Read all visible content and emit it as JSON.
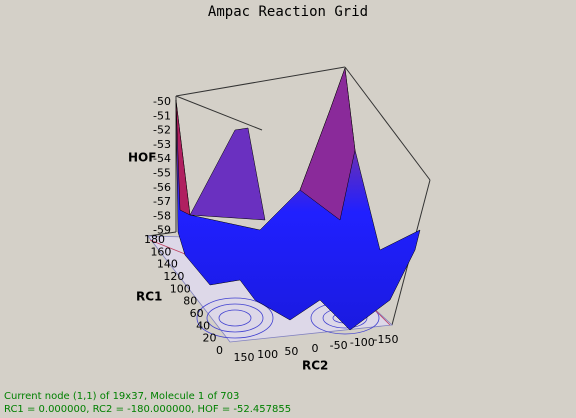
{
  "title": "Ampac Reaction Grid",
  "axes": {
    "z": {
      "label": "HOF",
      "ticks": [
        "-50",
        "-51",
        "-52",
        "-53",
        "-54",
        "-55",
        "-56",
        "-57",
        "-58",
        "-59"
      ]
    },
    "y": {
      "label": "RC1",
      "ticks": [
        "180",
        "160",
        "140",
        "120",
        "100",
        "80",
        "60",
        "40",
        "20",
        "0"
      ]
    },
    "x": {
      "label": "RC2",
      "ticks": [
        "150",
        "100",
        "50",
        "0",
        "-50",
        "-100",
        "-150"
      ]
    }
  },
  "status": [
    "Current node (1,1) of 19x37, Molecule 1 of 703",
    "RC1 = 0.000000, RC2 = -180.000000, HOF = -52.457855"
  ]
}
